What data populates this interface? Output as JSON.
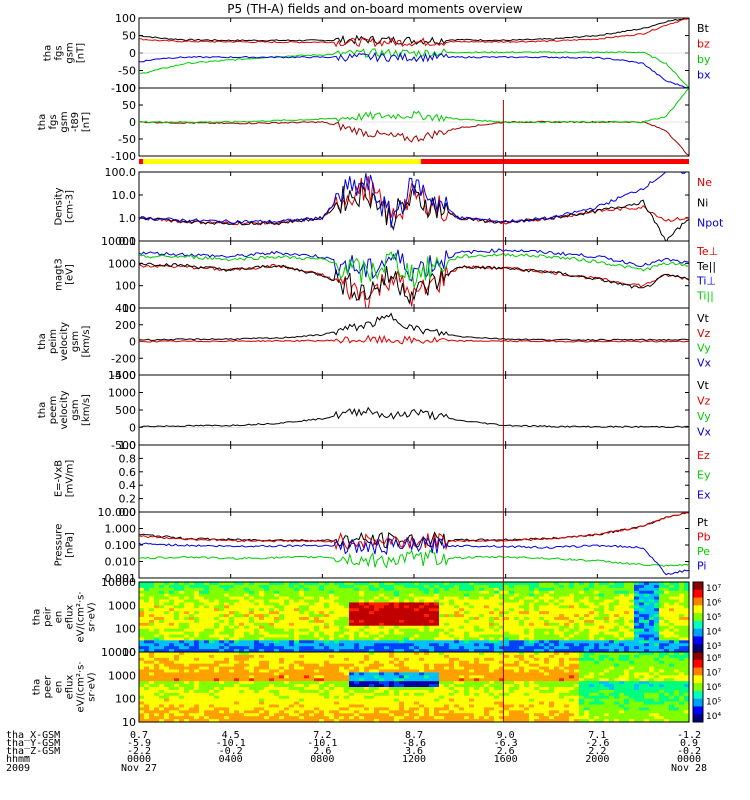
{
  "title": "P5 (TH-A) fields and on-board moments overview",
  "colors": {
    "black": "#000000",
    "red": "#dd0000",
    "green": "#00cc00",
    "blue": "#0000dd",
    "yellow": "#ffff00",
    "barRed": "#ff0000"
  },
  "chart_data": [
    {
      "type": "line",
      "panel": "fgs_gsm",
      "ylabel": [
        "tha",
        "fgs",
        "gsm",
        "[nT]"
      ],
      "ylim": [
        -100,
        100
      ],
      "yticks": [
        "100",
        "50",
        "0",
        "-50",
        "-100"
      ],
      "legend": [
        {
          "name": "Bt",
          "color": "black"
        },
        {
          "name": "bz",
          "color": "red"
        },
        {
          "name": "by",
          "color": "green"
        },
        {
          "name": "bx",
          "color": "blue"
        }
      ],
      "series": [
        {
          "name": "Bt",
          "x": [
            0,
            1,
            2,
            4,
            6,
            8,
            10,
            12,
            14,
            16,
            18,
            20,
            22,
            23,
            24
          ],
          "values": [
            50,
            42,
            38,
            36,
            36,
            36,
            38,
            36,
            38,
            36,
            40,
            50,
            70,
            90,
            100
          ]
        },
        {
          "name": "bz",
          "x": [
            0,
            1,
            2,
            4,
            6,
            8,
            10,
            12,
            14,
            16,
            18,
            20,
            22,
            23,
            24
          ],
          "values": [
            40,
            35,
            33,
            32,
            31,
            31,
            31,
            31,
            32,
            32,
            34,
            40,
            55,
            80,
            100
          ]
        },
        {
          "name": "by",
          "x": [
            0,
            1,
            2,
            4,
            6,
            8,
            10,
            12,
            14,
            16,
            18,
            20,
            22,
            23,
            24
          ],
          "values": [
            -60,
            -45,
            -30,
            -20,
            -10,
            -5,
            0,
            0,
            2,
            2,
            2,
            2,
            2,
            -30,
            -100
          ]
        },
        {
          "name": "bx",
          "x": [
            0,
            1,
            2,
            4,
            6,
            8,
            10,
            12,
            14,
            16,
            18,
            20,
            21,
            22,
            23,
            24
          ],
          "values": [
            -25,
            -15,
            -12,
            -12,
            -12,
            -12,
            -12,
            -12,
            -12,
            -12,
            -12,
            -14,
            -20,
            -30,
            -80,
            -100
          ]
        }
      ]
    },
    {
      "type": "line",
      "panel": "fgs_gsm_t89",
      "ylabel": [
        "tha",
        "fgs",
        "gsm",
        "-t89",
        "[nT]"
      ],
      "ylim": [
        -120,
        120
      ],
      "yticks": [
        "100",
        "50",
        "0",
        "-50",
        "-100"
      ],
      "series": [
        {
          "name": "dBz",
          "x": [
            0,
            2,
            4,
            6,
            8,
            10,
            12,
            14,
            16,
            18,
            20,
            22,
            23,
            24
          ],
          "values": [
            0,
            -3,
            -5,
            -3,
            0,
            -40,
            -60,
            -20,
            0,
            0,
            0,
            0,
            -30,
            -120
          ]
        },
        {
          "name": "dBy",
          "x": [
            0,
            2,
            4,
            6,
            8,
            10,
            12,
            14,
            16,
            18,
            20,
            22,
            23,
            24
          ],
          "values": [
            0,
            0,
            0,
            5,
            10,
            20,
            25,
            10,
            0,
            0,
            0,
            0,
            20,
            120
          ]
        }
      ]
    },
    {
      "type": "line",
      "panel": "density",
      "ylabel": [
        "Density",
        "[cm-3]"
      ],
      "ylim": [
        0.1,
        100
      ],
      "yscale": "log",
      "yticks": [
        "100.0",
        "10.0",
        "1.0",
        "0.1"
      ],
      "legend": [
        {
          "name": "Ne",
          "color": "red"
        },
        {
          "name": "Ni",
          "color": "black"
        },
        {
          "name": "Npot",
          "color": "blue"
        }
      ],
      "series": [
        {
          "name": "Ne",
          "x": [
            0,
            2,
            4,
            6,
            8,
            9,
            10,
            11,
            12,
            14,
            16,
            18,
            20,
            22,
            23,
            24
          ],
          "values": [
            1,
            0.7,
            0.6,
            0.6,
            1,
            10,
            20,
            1,
            10,
            1,
            0.6,
            1,
            2,
            3,
            0.8,
            1
          ]
        },
        {
          "name": "Ni",
          "x": [
            0,
            2,
            4,
            6,
            8,
            9,
            10,
            11,
            12,
            14,
            16,
            18,
            20,
            22,
            23,
            24
          ],
          "values": [
            1,
            0.7,
            0.6,
            0.6,
            1,
            8,
            15,
            1,
            8,
            1,
            0.6,
            1,
            2,
            5,
            0.1,
            1
          ]
        },
        {
          "name": "Npot",
          "x": [
            0,
            2,
            4,
            6,
            8,
            9,
            10,
            11,
            12,
            14,
            16,
            18,
            20,
            22,
            23,
            24
          ],
          "values": [
            1,
            0.8,
            0.7,
            0.7,
            1,
            15,
            30,
            1,
            30,
            1,
            0.7,
            1,
            3,
            20,
            100,
            100
          ]
        }
      ]
    },
    {
      "type": "line",
      "panel": "temperature",
      "ylabel": [
        "magt3",
        "[eV]"
      ],
      "ylim": [
        10,
        10000
      ],
      "yscale": "log",
      "yticks": [
        "10000",
        "1000",
        "100",
        "10"
      ],
      "legend": [
        {
          "name": "Te⊥",
          "color": "red"
        },
        {
          "name": "Te||",
          "color": "black"
        },
        {
          "name": "Ti⊥",
          "color": "blue"
        },
        {
          "name": "Ti||",
          "color": "green"
        }
      ],
      "series": [
        {
          "name": "Te⊥",
          "x": [
            0,
            2,
            4,
            6,
            8,
            10,
            11,
            12,
            14,
            16,
            18,
            20,
            22,
            23,
            24
          ],
          "values": [
            800,
            700,
            500,
            800,
            300,
            30,
            300,
            30,
            700,
            600,
            400,
            200,
            100,
            300,
            200
          ]
        },
        {
          "name": "Te||",
          "x": [
            0,
            2,
            4,
            6,
            8,
            10,
            11,
            12,
            14,
            16,
            18,
            20,
            22,
            23,
            24
          ],
          "values": [
            1000,
            800,
            500,
            800,
            300,
            50,
            300,
            40,
            700,
            600,
            400,
            200,
            70,
            300,
            200
          ]
        },
        {
          "name": "Ti⊥",
          "x": [
            0,
            2,
            4,
            6,
            8,
            10,
            11,
            12,
            14,
            16,
            18,
            20,
            22,
            23,
            24
          ],
          "values": [
            3000,
            2500,
            2000,
            3000,
            2000,
            400,
            2000,
            500,
            3000,
            4000,
            3000,
            2000,
            800,
            1500,
            1000
          ]
        },
        {
          "name": "Ti||",
          "x": [
            0,
            2,
            4,
            6,
            8,
            10,
            11,
            12,
            14,
            16,
            18,
            20,
            22,
            23,
            24
          ],
          "values": [
            2000,
            2000,
            1500,
            2000,
            1500,
            300,
            1500,
            300,
            2000,
            2500,
            2000,
            1200,
            500,
            1000,
            800
          ]
        }
      ]
    },
    {
      "type": "line",
      "panel": "peim_velocity",
      "ylabel": [
        "tha",
        "peim",
        "velocity",
        "gsm",
        "[km/s]"
      ],
      "ylim": [
        -400,
        400
      ],
      "yticks": [
        "400",
        "200",
        "0",
        "-200",
        "-400"
      ],
      "legend": [
        {
          "name": "Vt",
          "color": "black"
        },
        {
          "name": "Vz",
          "color": "red"
        },
        {
          "name": "Vy",
          "color": "green"
        },
        {
          "name": "Vx",
          "color": "blue"
        }
      ],
      "series": [
        {
          "name": "Vt",
          "x": [
            0,
            4,
            6,
            8,
            9,
            10,
            11,
            12,
            14,
            16,
            18,
            20,
            24
          ],
          "values": [
            20,
            30,
            40,
            80,
            150,
            200,
            300,
            150,
            60,
            30,
            20,
            20,
            20
          ]
        },
        {
          "name": "Vz",
          "x": [
            0,
            4,
            8,
            10,
            12,
            16,
            20,
            24
          ],
          "values": [
            0,
            5,
            10,
            20,
            10,
            5,
            0,
            0
          ]
        }
      ]
    },
    {
      "type": "line",
      "panel": "peem_velocity",
      "ylabel": [
        "tha",
        "peem",
        "velocity",
        "gsm",
        "[km/s]"
      ],
      "ylim": [
        -500,
        1500
      ],
      "yticks": [
        "1500",
        "1000",
        "500",
        "0",
        "-500"
      ],
      "legend": [
        {
          "name": "Vt",
          "color": "black"
        },
        {
          "name": "Vz",
          "color": "red"
        },
        {
          "name": "Vy",
          "color": "green"
        },
        {
          "name": "Vx",
          "color": "blue"
        }
      ],
      "series": [
        {
          "name": "Vt",
          "x": [
            0,
            4,
            6,
            8,
            9,
            10,
            11,
            12,
            14,
            16,
            18,
            20,
            24
          ],
          "values": [
            30,
            60,
            120,
            250,
            400,
            500,
            300,
            450,
            200,
            60,
            30,
            20,
            20
          ]
        }
      ]
    },
    {
      "type": "line",
      "panel": "efield",
      "ylabel": [
        "E=-VxB",
        "[mV/m]"
      ],
      "ylim": [
        0,
        1
      ],
      "yticks": [
        "1.0",
        "0.8",
        "0.6",
        "0.4",
        "0.2",
        "0.0"
      ],
      "legend": [
        {
          "name": "Ez",
          "color": "red"
        },
        {
          "name": "Ey",
          "color": "green"
        },
        {
          "name": "Ex",
          "color": "blue"
        }
      ],
      "series": []
    },
    {
      "type": "line",
      "panel": "pressure",
      "ylabel": [
        "Pressure",
        "[nPa]"
      ],
      "ylim": [
        0.001,
        100
      ],
      "yscale": "log",
      "yticks": [
        "10.000",
        "1.000",
        "0.100",
        "0.010",
        "0.001"
      ],
      "legend": [
        {
          "name": "Pt",
          "color": "black"
        },
        {
          "name": "Pb",
          "color": "red"
        },
        {
          "name": "Pe",
          "color": "green"
        },
        {
          "name": "Pi",
          "color": "blue"
        }
      ],
      "series": [
        {
          "name": "Pt",
          "x": [
            0,
            2,
            4,
            8,
            12,
            16,
            18,
            20,
            22,
            23,
            24
          ],
          "values": [
            2,
            1,
            0.8,
            0.7,
            0.7,
            0.8,
            1,
            2,
            8,
            40,
            100
          ]
        },
        {
          "name": "Pb",
          "x": [
            0,
            2,
            4,
            8,
            12,
            16,
            18,
            20,
            22,
            23,
            24
          ],
          "values": [
            1.5,
            0.9,
            0.7,
            0.6,
            0.6,
            0.7,
            0.9,
            2,
            8,
            40,
            100
          ]
        },
        {
          "name": "Pe",
          "x": [
            0,
            2,
            4,
            8,
            10,
            12,
            16,
            18,
            20,
            22,
            23,
            24
          ],
          "values": [
            0.03,
            0.04,
            0.03,
            0.04,
            0.02,
            0.03,
            0.04,
            0.03,
            0.02,
            0.01,
            0.008,
            0.01
          ]
        },
        {
          "name": "Pi",
          "x": [
            0,
            2,
            4,
            8,
            10,
            12,
            16,
            18,
            20,
            22,
            23,
            24
          ],
          "values": [
            0.4,
            0.3,
            0.25,
            0.3,
            0.2,
            0.3,
            0.25,
            0.2,
            0.3,
            0.2,
            0.002,
            0.004
          ]
        }
      ]
    },
    {
      "type": "heatmap",
      "panel": "peir_en_eflux",
      "ylabel": [
        "tha",
        "peir",
        "en",
        "eflux",
        "eV/(cm²·s·",
        "sr·eV)"
      ],
      "ylim": [
        10,
        10000
      ],
      "yscale": "log",
      "yticks": [
        "10000",
        "1000",
        "100",
        "10"
      ],
      "colorbar": {
        "ticks": [
          "10⁷",
          "10⁶",
          "10⁵",
          "10⁴",
          "10³"
        ]
      }
    },
    {
      "type": "heatmap",
      "panel": "peer_en_eflux",
      "ylabel": [
        "tha",
        "peer",
        "en",
        "eflux",
        "eV/(cm²·s·",
        "sr·eV)"
      ],
      "ylim": [
        10,
        10000
      ],
      "yscale": "log",
      "yticks": [
        "10000",
        "1000",
        "100",
        "10"
      ],
      "colorbar": {
        "ticks": [
          "10⁸",
          "10⁷",
          "10⁶",
          "10⁵",
          "10⁴"
        ]
      }
    }
  ],
  "xaxis": {
    "rowLabels": [
      "tha_X-GSM",
      "tha_Y-GSM",
      "tha_Z-GSM",
      "hhmm",
      "2009"
    ],
    "ticks": [
      {
        "x": 0,
        "v": [
          "0.7",
          "-5.9",
          "-2.2",
          "0000",
          "Nov 27"
        ]
      },
      {
        "x": 4,
        "v": [
          "4.5",
          "-10.1",
          "-0.2",
          "0400",
          ""
        ]
      },
      {
        "x": 8,
        "v": [
          "7.2",
          "-10.1",
          "2.6",
          "0800",
          ""
        ]
      },
      {
        "x": 12,
        "v": [
          "8.7",
          "-8.6",
          "3.6",
          "1200",
          ""
        ]
      },
      {
        "x": 16,
        "v": [
          "9.0",
          "-6.3",
          "2.6",
          "1600",
          ""
        ]
      },
      {
        "x": 20,
        "v": [
          "7.1",
          "-2.6",
          "2.2",
          "2000",
          ""
        ]
      },
      {
        "x": 24,
        "v": [
          "-1.2",
          "0.9",
          "-0.2",
          "0000",
          "Nov 28"
        ]
      }
    ]
  }
}
